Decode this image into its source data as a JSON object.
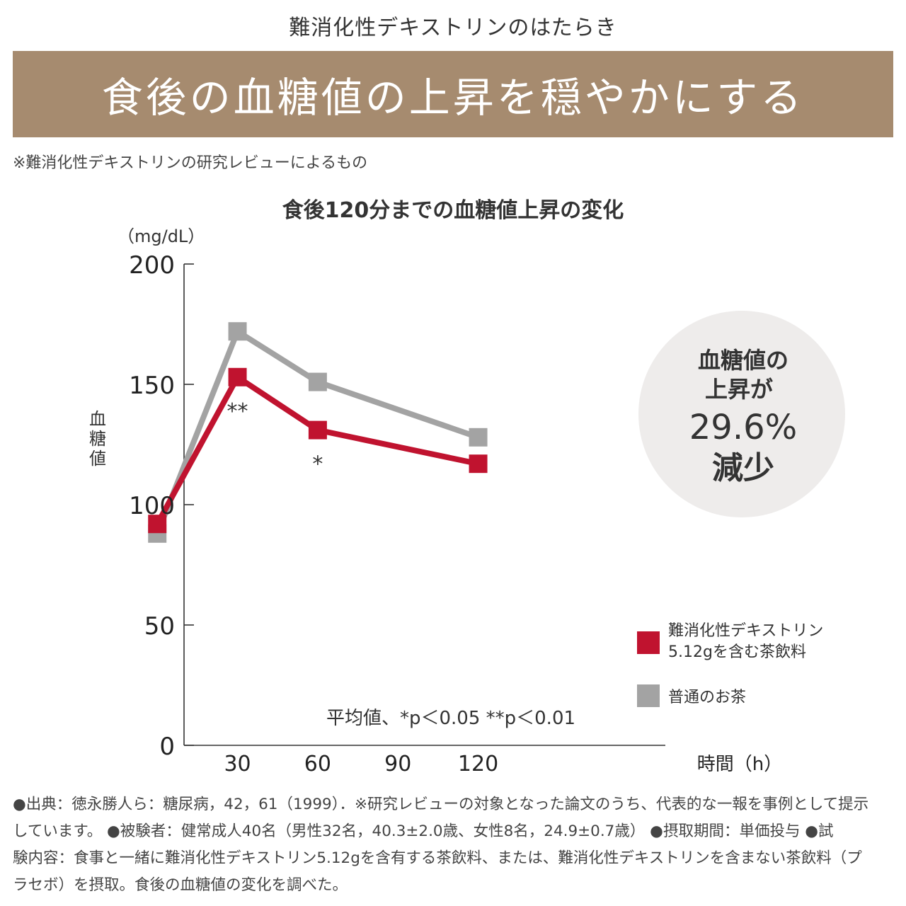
{
  "header": {
    "subtitle": "難消化性デキストリンのはたらき",
    "banner": "食後の血糖値の上昇を穏やかにする",
    "note": "※難消化性デキストリンの研究レビューによるもの",
    "banner_color": "#a68b6f"
  },
  "chart_data": {
    "type": "line",
    "title": "食後120分までの血糖値上昇の変化",
    "unit_label": "（mg/dL）",
    "ylabel": "血糖値",
    "xlabel": "時間（h）",
    "ylim": [
      0,
      200
    ],
    "yticks": [
      "0",
      "50",
      "100",
      "150",
      "200"
    ],
    "xlim": [
      10,
      190
    ],
    "xticks": [
      "30",
      "60",
      "90",
      "120"
    ],
    "series": [
      {
        "name": "普通のお茶",
        "color": "#a3a3a3",
        "x": [
          0,
          30,
          60,
          120
        ],
        "values": [
          88,
          172,
          151,
          128
        ]
      },
      {
        "name": "難消化性デキストリン5.12gを含む茶飲料",
        "legend_lines": [
          "難消化性デキストリン",
          "5.12gを含む茶飲料"
        ],
        "color": "#c0132f",
        "x": [
          0,
          30,
          60,
          120
        ],
        "values": [
          92,
          153,
          131,
          117
        ]
      }
    ],
    "annotations": [
      {
        "x": 30,
        "y": 153,
        "text": "**"
      },
      {
        "x": 60,
        "y": 131,
        "text": "*"
      }
    ],
    "stat_note": "平均値、*p＜0.05 **p＜0.01",
    "callout": {
      "lines": [
        "血糖値の",
        "上昇が"
      ],
      "value": "29.6%",
      "tail": "減少"
    }
  },
  "footnote": {
    "lines": [
      "●出典：徳永勝人ら：糖尿病，42，61（1999）．※研究レビューの対象となった論文のうち、代表的な一報を事例として提示",
      "しています。 ●被験者：健常成人40名（男性32名，40.3±2.0歳、女性8名，24.9±0.7歳） ●摂取期間：単価投与 ●試",
      "験内容：食事と一緒に難消化性デキストリン5.12gを含有する茶飲料、または、難消化性デキストリンを含まない茶飲料（プ",
      "ラセボ）を摂取。食後の血糖値の変化を調べた。"
    ]
  }
}
